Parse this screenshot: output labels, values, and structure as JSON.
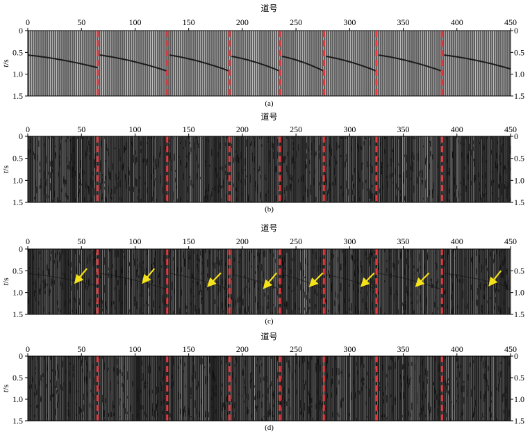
{
  "figure": {
    "panels": [
      {
        "id": "a",
        "caption": "(a)",
        "xlabel": "道号",
        "ylabel": "t/s",
        "background": "#5a5a5a",
        "style": "regular"
      },
      {
        "id": "b",
        "caption": "(b)",
        "xlabel": "道号",
        "ylabel": "t/s",
        "background": "#1a1a1a",
        "style": "noise"
      },
      {
        "id": "c",
        "caption": "(c)",
        "xlabel": "道号",
        "ylabel": "t/s",
        "background": "#1a1a1a",
        "style": "noise-events"
      },
      {
        "id": "d",
        "caption": "(d)",
        "xlabel": "道号",
        "ylabel": "t/s",
        "background": "#1a1a1a",
        "style": "noise"
      }
    ],
    "colors": {
      "boundary": "#e8383d",
      "arrow": "#f5e21a",
      "event": "#111111"
    }
  },
  "chart_data": [
    {
      "type": "heatmap",
      "panel": "a",
      "xlabel": "道号",
      "ylabel": "t/s",
      "xlim": [
        0,
        450
      ],
      "ylim": [
        1.5,
        0
      ],
      "xticks": [
        0,
        50,
        100,
        150,
        200,
        250,
        300,
        350,
        400,
        450
      ],
      "yticks": [
        0,
        0.5,
        1.0,
        1.5
      ],
      "ytick_labels_left": [
        "0",
        "0.5",
        "1.0",
        "1.5"
      ],
      "ytick_labels_right": [
        "0",
        "0.5",
        "1.0",
        "1.5"
      ],
      "gather_boundaries": [
        65,
        130,
        188,
        235,
        276,
        325,
        386
      ],
      "events": [
        {
          "x0": 0,
          "x1": 65,
          "t0": 0.56,
          "t1": 0.85
        },
        {
          "x0": 67,
          "x1": 130,
          "t0": 0.56,
          "t1": 0.93
        },
        {
          "x0": 132,
          "x1": 188,
          "t0": 0.56,
          "t1": 0.93
        },
        {
          "x0": 190,
          "x1": 235,
          "t0": 0.59,
          "t1": 0.93
        },
        {
          "x0": 237,
          "x1": 276,
          "t0": 0.59,
          "t1": 0.93
        },
        {
          "x0": 278,
          "x1": 325,
          "t0": 0.59,
          "t1": 0.93
        },
        {
          "x0": 327,
          "x1": 386,
          "t0": 0.56,
          "t1": 0.93
        },
        {
          "x0": 388,
          "x1": 450,
          "t0": 0.56,
          "t1": 0.88
        }
      ],
      "annotations": [],
      "caption": "(a)"
    },
    {
      "type": "heatmap",
      "panel": "b",
      "xlabel": "道号",
      "ylabel": "t/s",
      "xlim": [
        0,
        450
      ],
      "ylim": [
        1.5,
        0
      ],
      "xticks": [
        0,
        50,
        100,
        150,
        200,
        250,
        300,
        350,
        400,
        450
      ],
      "yticks": [
        0,
        0.5,
        1.0,
        1.5
      ],
      "ytick_labels_left": [
        "0",
        "0.5",
        "1.0",
        "1.5"
      ],
      "ytick_labels_right": [
        "0",
        "0.5",
        "1.0",
        "1.5"
      ],
      "gather_boundaries": [
        65,
        130,
        188,
        235,
        276,
        325,
        386
      ],
      "events": [],
      "annotations": [],
      "caption": "(b)"
    },
    {
      "type": "heatmap",
      "panel": "c",
      "xlabel": "道号",
      "ylabel": "t/s",
      "xlim": [
        0,
        450
      ],
      "ylim": [
        1.5,
        0
      ],
      "xticks": [
        0,
        50,
        100,
        150,
        200,
        250,
        300,
        350,
        400,
        450
      ],
      "yticks": [
        0,
        0.5,
        1.0,
        1.5
      ],
      "ytick_labels_left": [
        "0",
        "0.5",
        "1.0",
        "1.5"
      ],
      "ytick_labels_right": [
        "0.5",
        "1.0",
        "1.5"
      ],
      "gather_boundaries": [
        65,
        130,
        188,
        235,
        276,
        325,
        386
      ],
      "events": [
        {
          "x0": 0,
          "x1": 65,
          "t0": 0.56,
          "t1": 0.85
        },
        {
          "x0": 67,
          "x1": 130,
          "t0": 0.56,
          "t1": 0.93
        },
        {
          "x0": 132,
          "x1": 188,
          "t0": 0.56,
          "t1": 0.93
        },
        {
          "x0": 190,
          "x1": 235,
          "t0": 0.59,
          "t1": 0.93
        },
        {
          "x0": 237,
          "x1": 276,
          "t0": 0.59,
          "t1": 0.93
        },
        {
          "x0": 278,
          "x1": 325,
          "t0": 0.59,
          "t1": 0.93
        },
        {
          "x0": 327,
          "x1": 386,
          "t0": 0.56,
          "t1": 0.93
        },
        {
          "x0": 388,
          "x1": 450,
          "t0": 0.56,
          "t1": 0.88
        }
      ],
      "annotations": [
        {
          "type": "arrow",
          "x_from": 55,
          "t_from": 0.45,
          "x_to": 46,
          "t_to": 0.72
        },
        {
          "type": "arrow",
          "x_from": 118,
          "t_from": 0.45,
          "x_to": 109,
          "t_to": 0.72
        },
        {
          "type": "arrow",
          "x_from": 180,
          "t_from": 0.55,
          "x_to": 170,
          "t_to": 0.8
        },
        {
          "type": "arrow",
          "x_from": 232,
          "t_from": 0.55,
          "x_to": 222,
          "t_to": 0.84
        },
        {
          "type": "arrow",
          "x_from": 275,
          "t_from": 0.55,
          "x_to": 265,
          "t_to": 0.8
        },
        {
          "type": "arrow",
          "x_from": 323,
          "t_from": 0.55,
          "x_to": 313,
          "t_to": 0.8
        },
        {
          "type": "arrow",
          "x_from": 374,
          "t_from": 0.55,
          "x_to": 364,
          "t_to": 0.8
        },
        {
          "type": "arrow",
          "x_from": 441,
          "t_from": 0.5,
          "x_to": 432,
          "t_to": 0.78
        }
      ],
      "caption": "(c)"
    },
    {
      "type": "heatmap",
      "panel": "d",
      "xlabel": "道号",
      "ylabel": "t/s",
      "xlim": [
        0,
        450
      ],
      "ylim": [
        1.5,
        0
      ],
      "xticks": [
        0,
        50,
        100,
        150,
        200,
        250,
        300,
        350,
        400,
        450
      ],
      "yticks": [
        0,
        0.5,
        1.0,
        1.5
      ],
      "ytick_labels_left": [
        "0",
        "0.5",
        "1.0",
        "1.5"
      ],
      "ytick_labels_right": [
        "0",
        "0.5",
        "1.0",
        "1.5"
      ],
      "gather_boundaries": [
        65,
        130,
        188,
        235,
        276,
        325,
        386
      ],
      "events": [],
      "annotations": [],
      "caption": "(d)"
    }
  ]
}
